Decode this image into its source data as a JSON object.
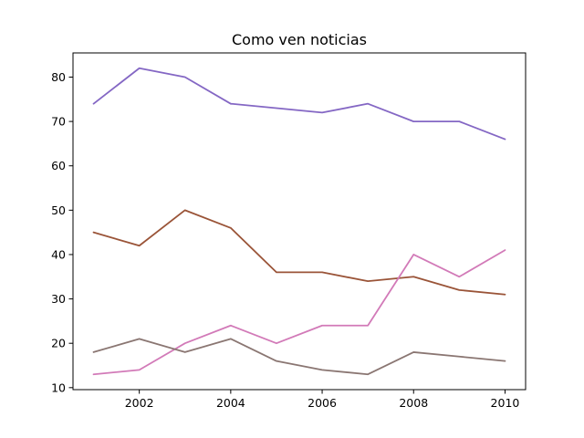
{
  "chart_data": {
    "type": "line",
    "title": "Como ven noticias",
    "xlabel": "",
    "ylabel": "",
    "x": [
      2001,
      2002,
      2003,
      2004,
      2005,
      2006,
      2007,
      2008,
      2009,
      2010
    ],
    "xlim": [
      2000.55,
      2010.45
    ],
    "ylim": [
      9.55,
      85.45
    ],
    "xticks": [
      2002,
      2004,
      2006,
      2008,
      2010
    ],
    "yticks": [
      10,
      20,
      30,
      40,
      50,
      60,
      70,
      80
    ],
    "grid": false,
    "legend": "none",
    "series": [
      {
        "color": "#8467c4",
        "values": [
          74,
          82,
          80,
          74,
          73,
          72,
          74,
          70,
          70,
          66
        ]
      },
      {
        "color": "#9a5438",
        "values": [
          45,
          42,
          50,
          46,
          36,
          36,
          34,
          35,
          32,
          31
        ]
      },
      {
        "color": "#d27ab8",
        "values": [
          13,
          14,
          20,
          24,
          20,
          24,
          24,
          40,
          35,
          41
        ]
      },
      {
        "color": "#8a7672",
        "values": [
          18,
          21,
          18,
          21,
          16,
          14,
          13,
          18,
          17,
          16
        ]
      }
    ]
  }
}
